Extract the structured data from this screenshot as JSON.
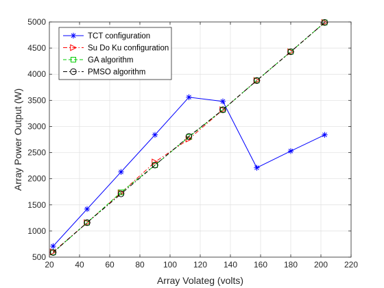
{
  "chart_data": {
    "type": "line",
    "xlabel": "Array Volateg (volts)",
    "ylabel": "Array Power Output (W)",
    "xlim": [
      20,
      220
    ],
    "ylim": [
      500,
      5000
    ],
    "xticks": [
      20,
      40,
      60,
      80,
      100,
      120,
      140,
      160,
      180,
      200,
      220
    ],
    "yticks": [
      500,
      1000,
      1500,
      2000,
      2500,
      3000,
      3500,
      4000,
      4500,
      5000
    ],
    "grid": true,
    "legend_position": "top-left",
    "series": [
      {
        "name": "TCT configuration",
        "color": "#0000ff",
        "line_style": "solid",
        "marker": "asterisk",
        "points": [
          [
            22.5,
            710
          ],
          [
            45,
            1420
          ],
          [
            67.5,
            2130
          ],
          [
            90,
            2840
          ],
          [
            112.5,
            3560
          ],
          [
            135,
            3480
          ],
          [
            157.5,
            2210
          ],
          [
            180,
            2530
          ],
          [
            202.5,
            2840
          ]
        ]
      },
      {
        "name": "Su Do Ku configuration",
        "color": "#ff0000",
        "line_style": "dashdot",
        "marker": "triangle-right",
        "points": [
          [
            22.5,
            600
          ],
          [
            45,
            1160
          ],
          [
            67.5,
            1730
          ],
          [
            90,
            2320
          ],
          [
            112.5,
            2760
          ],
          [
            135,
            3320
          ],
          [
            157.5,
            3880
          ],
          [
            180,
            4430
          ],
          [
            202.5,
            4990
          ]
        ]
      },
      {
        "name": "GA algorithm",
        "color": "#00cc00",
        "line_style": "dashed",
        "marker": "square",
        "points": [
          [
            22.5,
            590
          ],
          [
            45,
            1160
          ],
          [
            67.5,
            1740
          ],
          [
            90,
            2260
          ],
          [
            112.5,
            2800
          ],
          [
            135,
            3320
          ],
          [
            157.5,
            3880
          ],
          [
            180,
            4430
          ],
          [
            202.5,
            4990
          ]
        ]
      },
      {
        "name": "PMSO algorithm",
        "color": "#000000",
        "line_style": "dashdot",
        "marker": "circle",
        "points": [
          [
            22.5,
            590
          ],
          [
            45,
            1160
          ],
          [
            67.5,
            1710
          ],
          [
            90,
            2260
          ],
          [
            112.5,
            2810
          ],
          [
            135,
            3320
          ],
          [
            157.5,
            3880
          ],
          [
            180,
            4430
          ],
          [
            202.5,
            4990
          ]
        ]
      }
    ]
  }
}
